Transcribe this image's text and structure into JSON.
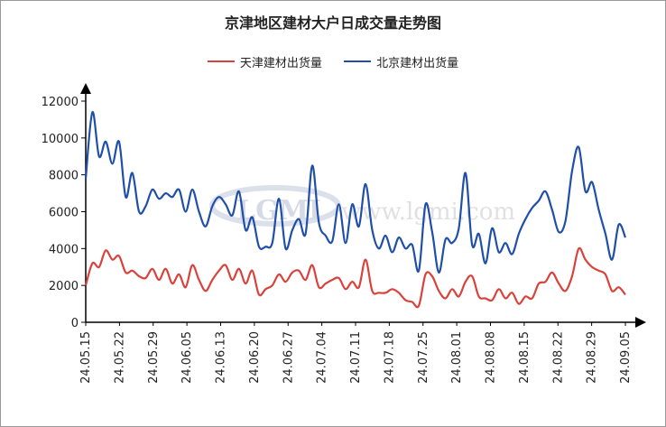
{
  "chart_data": {
    "type": "line",
    "title": "京津地区建材大户日成交量走势图",
    "xlabel": "",
    "ylabel": "",
    "ylim": [
      0,
      12000
    ],
    "yticks": [
      0,
      2000,
      4000,
      6000,
      8000,
      10000,
      12000
    ],
    "xticks": [
      "24.05.15",
      "24.05.22",
      "24.05.29",
      "24.06.05",
      "24.06.13",
      "24.06.20",
      "24.06.27",
      "24.07.04",
      "24.07.11",
      "24.07.18",
      "24.07.25",
      "24.08.01",
      "24.08.08",
      "24.08.15",
      "24.08.22",
      "24.08.29",
      "24.09.05"
    ],
    "legend_position": "top",
    "grid": false,
    "watermark": "LGMI www.lgmi.com",
    "series": [
      {
        "name": "天津建材出货量",
        "color": "#d9423a",
        "values": [
          2000,
          3200,
          3000,
          3900,
          3400,
          3600,
          2700,
          2800,
          2500,
          2400,
          2900,
          2300,
          2900,
          2100,
          2600,
          1900,
          3100,
          2300,
          1700,
          2300,
          2800,
          3100,
          2300,
          2900,
          2100,
          2800,
          1500,
          1800,
          2000,
          2600,
          2200,
          2700,
          2800,
          2300,
          3100,
          1900,
          2100,
          2300,
          2400,
          1800,
          2200,
          1900,
          3400,
          1700,
          1600,
          1600,
          1800,
          1600,
          1200,
          1100,
          900,
          2600,
          2500,
          1700,
          1300,
          1800,
          1400,
          2200,
          2500,
          1400,
          1300,
          1200,
          1800,
          1300,
          1600,
          1000,
          1400,
          1300,
          2100,
          2200,
          2700,
          2100,
          1700,
          2500,
          4000,
          3400,
          3000,
          2800,
          2600,
          1700,
          1900,
          1500
        ]
      },
      {
        "name": "北京建材出货量",
        "color": "#1f4fa8",
        "values": [
          7800,
          11400,
          9000,
          9800,
          8600,
          9800,
          6800,
          8100,
          6000,
          6300,
          7200,
          6700,
          7000,
          6800,
          7200,
          6000,
          7200,
          6000,
          5200,
          6300,
          6800,
          6400,
          5800,
          7100,
          5000,
          5700,
          4100,
          4100,
          4300,
          6700,
          4000,
          5000,
          5600,
          4800,
          8500,
          5400,
          4700,
          4400,
          6400,
          4300,
          6400,
          5200,
          7500,
          5000,
          4000,
          4700,
          3800,
          4600,
          4000,
          4200,
          2800,
          6400,
          4900,
          2700,
          4500,
          4300,
          5100,
          8100,
          4200,
          4800,
          3200,
          5100,
          3800,
          4300,
          3700,
          4800,
          5600,
          6200,
          6600,
          7100,
          6100,
          4900,
          5500,
          8200,
          9500,
          7100,
          7600,
          6100,
          4800,
          3400,
          5300,
          4600
        ]
      }
    ]
  }
}
